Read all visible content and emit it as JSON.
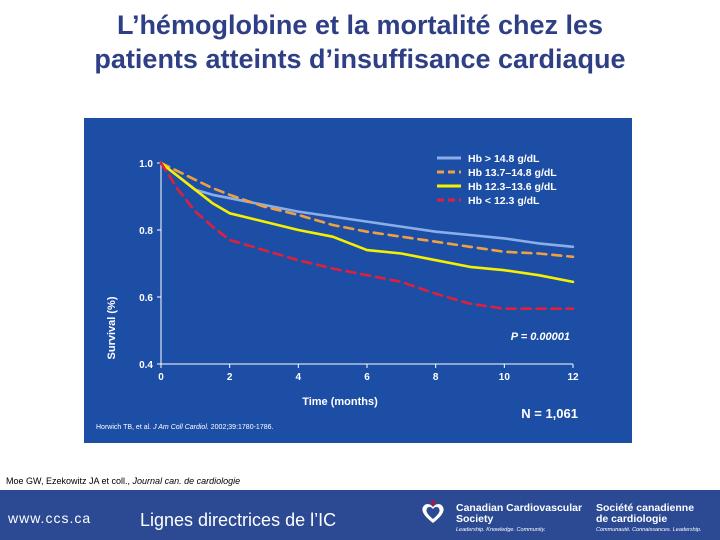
{
  "slide": {
    "title_line1": "L’hémoglobine et la mortalité chez les",
    "title_line2": "patients atteints d’insuffisance cardiaque",
    "reference_main": "Moe GW, Ezekowitz JA et coll., ",
    "reference_journal": "Journal can. de cardiologie"
  },
  "footer": {
    "url": "www.ccs.ca",
    "guidelines": "Lignes directrices de l’IC",
    "org_en_1": "Canadian Cardiovascular",
    "org_en_2": "Society",
    "org_en_tag": "Leadership. Knowledge. Community.",
    "org_fr_1": "Société canadienne",
    "org_fr_2": "de cardiologie",
    "org_fr_tag": "Communauté. Connaissances. Leadership."
  },
  "colors": {
    "chart_bg": "#1d4ea6",
    "title": "#2e3f86",
    "footer_bg": "#2b4a93",
    "logo_red": "#c8102e"
  },
  "chart_data": {
    "type": "line",
    "ylabel": "Survival (%)",
    "xlabel": "Time (months)",
    "xlim": [
      0,
      12
    ],
    "ylim": [
      0.4,
      1.0
    ],
    "x_ticks": [
      "0",
      "2",
      "4",
      "6",
      "8",
      "10",
      "12"
    ],
    "y_ticks": [
      "0.4",
      "0.6",
      "0.8",
      "1.0"
    ],
    "annotation_p": "P = 0.00001",
    "annotation_n": "N = 1,061",
    "citation_prefix": "Horwich TB, et al. ",
    "citation_journal": "J Am Coll Cardiol.",
    "citation_suffix": " 2002;39:1780-1786.",
    "series": [
      {
        "name": "Hb > 14.8 g/dL",
        "color": "#8aaee8",
        "dash": false,
        "x": [
          0,
          0.5,
          1,
          1.5,
          2,
          3,
          4,
          5,
          6,
          7,
          8,
          9,
          10,
          11,
          12
        ],
        "y": [
          1.0,
          0.96,
          0.92,
          0.905,
          0.895,
          0.875,
          0.855,
          0.84,
          0.825,
          0.81,
          0.795,
          0.785,
          0.775,
          0.76,
          0.75
        ]
      },
      {
        "name": "Hb 13.7–14.8 g/dL",
        "color": "#f0a040",
        "dash": true,
        "x": [
          0,
          0.5,
          1,
          1.5,
          2,
          3,
          4,
          5,
          6,
          7,
          8,
          9,
          10,
          11,
          12
        ],
        "y": [
          1.0,
          0.975,
          0.95,
          0.925,
          0.905,
          0.87,
          0.845,
          0.815,
          0.795,
          0.78,
          0.765,
          0.75,
          0.735,
          0.73,
          0.72
        ]
      },
      {
        "name": "Hb 12.3–13.6 g/dL",
        "color": "#f5f000",
        "dash": false,
        "x": [
          0,
          0.5,
          1,
          1.5,
          2,
          3,
          4,
          5,
          6,
          7,
          8,
          9,
          10,
          11,
          12
        ],
        "y": [
          1.0,
          0.96,
          0.92,
          0.88,
          0.85,
          0.825,
          0.8,
          0.78,
          0.74,
          0.73,
          0.71,
          0.69,
          0.68,
          0.665,
          0.645
        ]
      },
      {
        "name": "Hb < 12.3 g/dL",
        "color": "#e0203a",
        "dash": true,
        "x": [
          0,
          0.5,
          1,
          1.5,
          2,
          3,
          4,
          5,
          6,
          7,
          8,
          9,
          10,
          11,
          12
        ],
        "y": [
          1.0,
          0.92,
          0.855,
          0.81,
          0.77,
          0.74,
          0.71,
          0.685,
          0.665,
          0.645,
          0.61,
          0.58,
          0.565,
          0.565,
          0.565
        ]
      }
    ]
  }
}
